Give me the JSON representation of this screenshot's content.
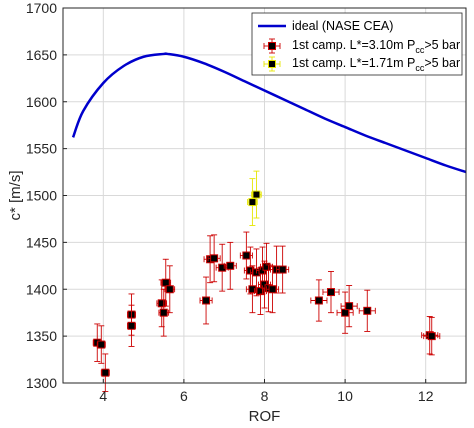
{
  "chart_data": {
    "type": "scatter",
    "xlabel": "ROF",
    "ylabel": "c* [m/s]",
    "xlim": [
      3,
      13
    ],
    "ylim": [
      1300,
      1700
    ],
    "xticks": [
      4,
      6,
      8,
      10,
      12
    ],
    "yticks": [
      1300,
      1350,
      1400,
      1450,
      1500,
      1550,
      1600,
      1650,
      1700
    ],
    "grid": true,
    "legend_position": "top-right",
    "colors": {
      "ideal": "#0000cc",
      "campaign_310": "#cc0000",
      "campaign_171": "#e6e600",
      "marker_fill": "#000000",
      "grid": "#d9d9d9"
    },
    "series": [
      {
        "name": "ideal (NASE CEA)",
        "kind": "line",
        "x": [
          3.25,
          3.5,
          4.0,
          4.5,
          5.0,
          5.5,
          5.6,
          6.0,
          6.5,
          7.0,
          7.5,
          8.0,
          8.5,
          9.0,
          9.5,
          10.0,
          10.5,
          11.0,
          11.5,
          12.0,
          12.5,
          13.0
        ],
        "y": [
          1562,
          1590,
          1620,
          1638,
          1648,
          1651,
          1651,
          1648,
          1641,
          1632,
          1622,
          1612,
          1602,
          1592,
          1582,
          1573,
          1564,
          1556,
          1548,
          1540,
          1532,
          1525
        ]
      },
      {
        "name": "1st camp. L*=3.10m P",
        "name_sub": "cc",
        "name_tail": ">5 bar",
        "kind": "errorbar",
        "points": [
          {
            "x": 3.85,
            "y": 1343,
            "xerr": 0.1,
            "yerr": 20
          },
          {
            "x": 3.95,
            "y": 1341,
            "xerr": 0.1,
            "yerr": 20
          },
          {
            "x": 4.05,
            "y": 1311,
            "xerr": 0.1,
            "yerr": 20
          },
          {
            "x": 4.7,
            "y": 1373,
            "xerr": 0.1,
            "yerr": 22
          },
          {
            "x": 4.7,
            "y": 1361,
            "xerr": 0.1,
            "yerr": 22
          },
          {
            "x": 5.45,
            "y": 1385,
            "xerr": 0.12,
            "yerr": 25
          },
          {
            "x": 5.5,
            "y": 1375,
            "xerr": 0.12,
            "yerr": 25
          },
          {
            "x": 5.55,
            "y": 1407,
            "xerr": 0.12,
            "yerr": 25
          },
          {
            "x": 5.65,
            "y": 1400,
            "xerr": 0.12,
            "yerr": 25
          },
          {
            "x": 6.55,
            "y": 1388,
            "xerr": 0.15,
            "yerr": 25
          },
          {
            "x": 6.65,
            "y": 1432,
            "xerr": 0.15,
            "yerr": 25
          },
          {
            "x": 6.75,
            "y": 1433,
            "xerr": 0.15,
            "yerr": 25
          },
          {
            "x": 6.95,
            "y": 1423,
            "xerr": 0.15,
            "yerr": 25
          },
          {
            "x": 7.15,
            "y": 1425,
            "xerr": 0.15,
            "yerr": 25
          },
          {
            "x": 7.55,
            "y": 1436,
            "xerr": 0.15,
            "yerr": 25
          },
          {
            "x": 7.65,
            "y": 1420,
            "xerr": 0.15,
            "yerr": 25
          },
          {
            "x": 7.7,
            "y": 1400,
            "xerr": 0.15,
            "yerr": 25
          },
          {
            "x": 7.8,
            "y": 1418,
            "xerr": 0.15,
            "yerr": 25
          },
          {
            "x": 7.9,
            "y": 1398,
            "xerr": 0.15,
            "yerr": 25
          },
          {
            "x": 7.95,
            "y": 1420,
            "xerr": 0.15,
            "yerr": 25
          },
          {
            "x": 8.0,
            "y": 1405,
            "xerr": 0.15,
            "yerr": 25
          },
          {
            "x": 8.05,
            "y": 1424,
            "xerr": 0.15,
            "yerr": 25
          },
          {
            "x": 8.1,
            "y": 1401,
            "xerr": 0.15,
            "yerr": 25
          },
          {
            "x": 8.2,
            "y": 1400,
            "xerr": 0.15,
            "yerr": 25
          },
          {
            "x": 8.3,
            "y": 1421,
            "xerr": 0.15,
            "yerr": 25
          },
          {
            "x": 8.45,
            "y": 1421,
            "xerr": 0.15,
            "yerr": 25
          },
          {
            "x": 9.35,
            "y": 1388,
            "xerr": 0.2,
            "yerr": 22
          },
          {
            "x": 9.65,
            "y": 1397,
            "xerr": 0.2,
            "yerr": 22
          },
          {
            "x": 10.0,
            "y": 1375,
            "xerr": 0.2,
            "yerr": 22
          },
          {
            "x": 10.1,
            "y": 1382,
            "xerr": 0.2,
            "yerr": 22
          },
          {
            "x": 10.55,
            "y": 1377,
            "xerr": 0.2,
            "yerr": 22
          },
          {
            "x": 12.1,
            "y": 1351,
            "xerr": 0.2,
            "yerr": 20
          },
          {
            "x": 12.15,
            "y": 1350,
            "xerr": 0.2,
            "yerr": 20
          }
        ]
      },
      {
        "name": "1st camp. L*=1.71m P",
        "name_sub": "cc",
        "name_tail": ">5 bar",
        "kind": "errorbar",
        "points": [
          {
            "x": 7.7,
            "y": 1493,
            "xerr": 0.12,
            "yerr": 25
          },
          {
            "x": 7.8,
            "y": 1501,
            "xerr": 0.12,
            "yerr": 25
          }
        ]
      }
    ]
  }
}
